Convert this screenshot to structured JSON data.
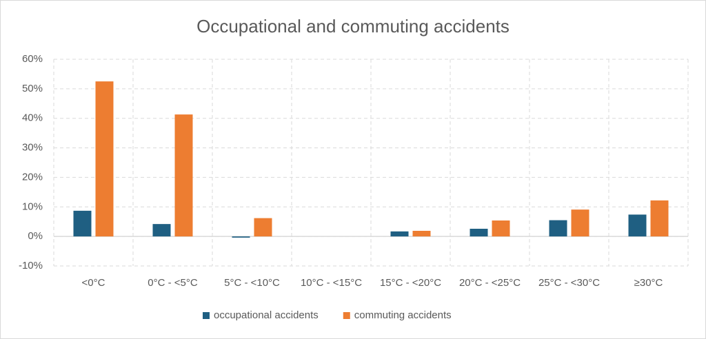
{
  "chart_data": {
    "type": "bar",
    "title": "Occupational and commuting accidents",
    "categories": [
      "<0°C",
      "0°C - <5°C",
      "5°C - <10°C",
      "10°C - <15°C",
      "15°C - <20°C",
      "20°C - <25°C",
      "25°C - <30°C",
      "≥30°C"
    ],
    "series": [
      {
        "name": "occupational accidents",
        "color": "#1f5f82",
        "values": [
          8.7,
          4.2,
          -0.4,
          0,
          1.7,
          2.6,
          5.5,
          7.4
        ]
      },
      {
        "name": "commuting accidents",
        "color": "#ed7d31",
        "values": [
          52.5,
          41.3,
          6.2,
          0,
          1.9,
          5.4,
          9.1,
          12.2
        ]
      }
    ],
    "ylim": [
      -10,
      60
    ],
    "yticks": [
      {
        "value": -10,
        "label": "-10%"
      },
      {
        "value": 0,
        "label": "0%"
      },
      {
        "value": 10,
        "label": "10%"
      },
      {
        "value": 20,
        "label": "20%"
      },
      {
        "value": 30,
        "label": "30%"
      },
      {
        "value": 40,
        "label": "40%"
      },
      {
        "value": 50,
        "label": "50%"
      },
      {
        "value": 60,
        "label": "60%"
      }
    ],
    "grid": true,
    "legend": "bottom"
  }
}
